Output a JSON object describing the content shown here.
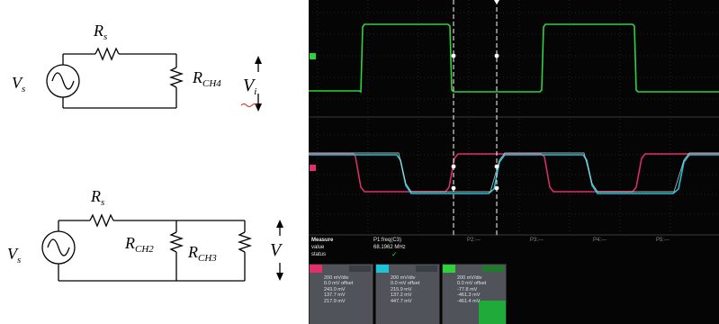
{
  "top_circuit": {
    "source_label": "V",
    "source_sub": "s",
    "series_resistor_label": "R",
    "series_resistor_sub": "s",
    "load_resistor_label": "R",
    "load_resistor_sub": "CH4",
    "output_voltage_label": "V",
    "output_voltage_sub": "i"
  },
  "bottom_circuit": {
    "source_label": "V",
    "source_sub": "s",
    "series_resistor_label": "R",
    "series_resistor_sub": "s",
    "parallel_resistor_1_label": "R",
    "parallel_resistor_1_sub": "CH2",
    "parallel_resistor_2_label": "R",
    "parallel_resistor_2_sub": "CH3",
    "output_voltage_label": "V"
  },
  "oscilloscope": {
    "measure": {
      "title": "Measure",
      "rows": [
        {
          "name": "value",
          "value": "68.1962 MHz"
        },
        {
          "name": "status",
          "value": "✓"
        }
      ],
      "source": "P1:freq(C3)"
    },
    "measure_columns": [
      "P2:---",
      "P3:---",
      "P4:---",
      "P5:---"
    ],
    "colors": {
      "ch_green": "#2fd23a",
      "ch_cyan": "#1ec3d8",
      "ch_magenta": "#e0306a",
      "ch_white": "#e8e8e8",
      "panel_bg": "#50545a"
    },
    "channels": [
      {
        "id": "C2",
        "color": "#e0306a",
        "lines": [
          "200 mV/div",
          "0.0 mV offset",
          "243.0 mV",
          "137.7 mV",
          "217.9 mV"
        ]
      },
      {
        "id": "C3",
        "color": "#1ec3d8",
        "lines": [
          "200 mV/div",
          "0.0 mV offset",
          "215.9 mV",
          "137.2 mV",
          "447.7 mV"
        ]
      },
      {
        "id": "C4",
        "color": "#2fd23a",
        "lines": [
          "200 mV/div",
          "0.0 mV offset",
          "-77.8 mV",
          "-461.3 mV",
          "-461.4 mV"
        ]
      }
    ]
  }
}
